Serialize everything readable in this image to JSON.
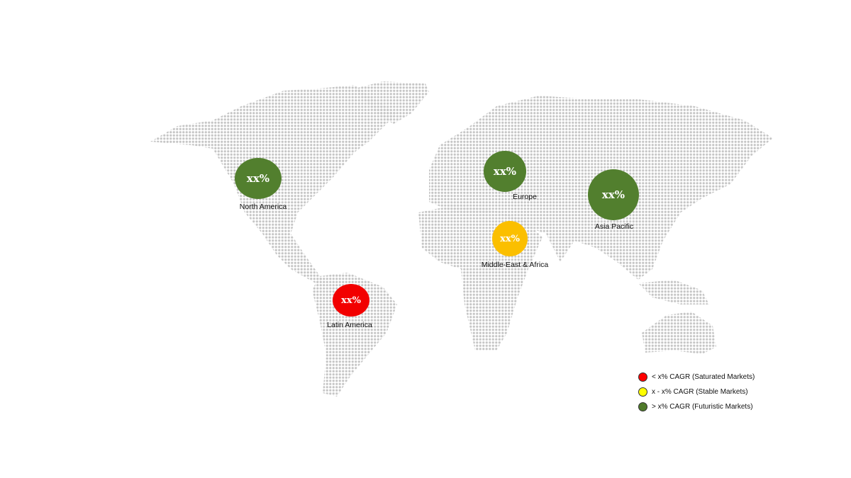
{
  "regions": [
    {
      "name": "North America",
      "value": "xx%",
      "category": "futuristic"
    },
    {
      "name": "Europe",
      "value": "xx%",
      "category": "futuristic"
    },
    {
      "name": "Asia Pacific",
      "value": "xx%",
      "category": "futuristic"
    },
    {
      "name": "Middle-East & Africa",
      "value": "xx%",
      "category": "stable"
    },
    {
      "name": "Latin America",
      "value": "xx%",
      "category": "saturated"
    }
  ],
  "legend": [
    {
      "label": "< x% CAGR (Saturated Markets)",
      "color": "#ff0000"
    },
    {
      "label": "x - x% CAGR (Stable Markets)",
      "color": "#ffff00"
    },
    {
      "label": "> x% CAGR (Futuristic Markets)",
      "color": "#4f7a2a"
    }
  ],
  "colors": {
    "futuristic": "#527f2e",
    "stable": "#fbbf00",
    "saturated": "#f20000",
    "land_dots": "#c6c6c6"
  }
}
